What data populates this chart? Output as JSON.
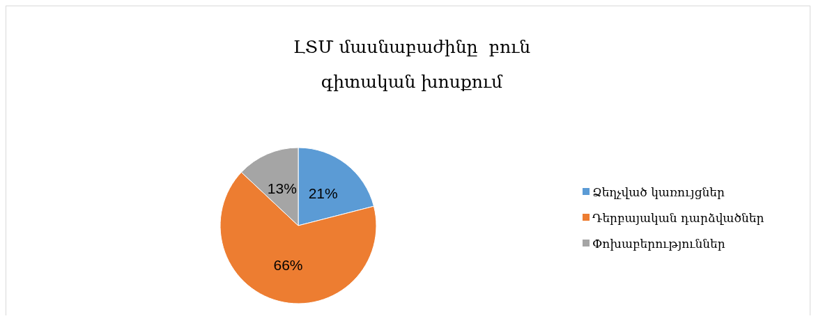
{
  "chart_data": {
    "type": "pie",
    "title": "ԼՏՄ մասնաբաժինը  բուն գիտական խոսքում",
    "categories": [
      "Ձեղչված կառույցներ",
      "Դերբայական դարձվածներ",
      "Փոխաբերություններ"
    ],
    "values": [
      21,
      66,
      13
    ],
    "colors": [
      "#5b9bd5",
      "#ed7d31",
      "#a5a5a5"
    ],
    "value_labels": [
      "21%",
      "66%",
      "13%"
    ],
    "legend": "right"
  }
}
